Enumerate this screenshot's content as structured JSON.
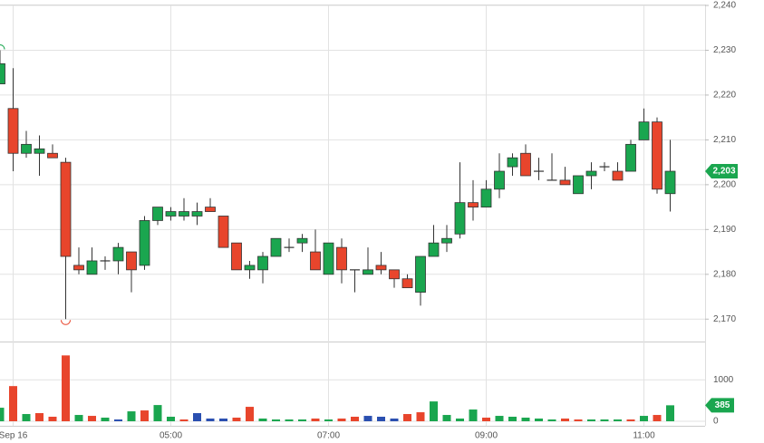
{
  "chart_data": {
    "type": "candlestick",
    "categories": [
      null,
      "Sep 16",
      null,
      null,
      null,
      null,
      null,
      null,
      null,
      null,
      null,
      null,
      null,
      "05:00",
      null,
      null,
      null,
      null,
      null,
      null,
      null,
      null,
      null,
      null,
      null,
      "07:00",
      null,
      null,
      null,
      null,
      null,
      null,
      null,
      null,
      null,
      null,
      null,
      "09:00",
      null,
      null,
      null,
      null,
      null,
      null,
      null,
      null,
      null,
      null,
      null,
      "11:00",
      null,
      null
    ],
    "open": [
      2222.5,
      2217,
      2207,
      2207,
      2207,
      2205,
      2182,
      2180,
      2183,
      2183,
      2185,
      2182,
      2192,
      2193,
      2193,
      2193,
      2195,
      2193,
      2187,
      2181,
      2181,
      2184,
      2186,
      2187,
      2185,
      2180,
      2186,
      2181,
      2180,
      2182,
      2181,
      2179,
      2176,
      2184,
      2187,
      2189,
      2196,
      2195,
      2199,
      2204,
      2207,
      2203,
      2201,
      2201,
      2198,
      2202,
      2204,
      2203,
      2203,
      2210,
      2214,
      2198
    ],
    "high": [
      2230,
      2226,
      2212,
      2211,
      2209,
      2206,
      2186,
      2186,
      2184,
      2187,
      2185,
      2193,
      2195,
      2195,
      2197,
      2196,
      2197,
      2193,
      2187,
      2183,
      2185,
      2188,
      2188,
      2189,
      2190,
      2187,
      2188,
      2181,
      2186,
      2185,
      2181,
      2180,
      2184,
      2191,
      2191,
      2205,
      2201,
      2201,
      2207,
      2207,
      2209,
      2206,
      2207,
      2204,
      2202,
      2205,
      2205,
      2205,
      2210,
      2217,
      2215,
      2210
    ],
    "low": [
      2222.5,
      2203,
      2206,
      2202,
      2206,
      2170,
      2180,
      2180,
      2181,
      2180,
      2176,
      2181,
      2191,
      2192,
      2192,
      2191,
      2194,
      2186,
      2181,
      2179,
      2178,
      2184,
      2185,
      2185,
      2181,
      2180,
      2178,
      2176,
      2180,
      2180,
      2177,
      2177,
      2173,
      2184,
      2185,
      2188,
      2192,
      2195,
      2197,
      2202,
      2202,
      2201,
      2201,
      2200,
      2198,
      2199,
      2203,
      2201,
      2203,
      2210,
      2198,
      2194
    ],
    "close": [
      2227,
      2207,
      2209,
      2208,
      2206,
      2184,
      2181,
      2183,
      2183,
      2186,
      2181,
      2192,
      2195,
      2194,
      2194,
      2194,
      2194,
      2186,
      2181,
      2182,
      2184,
      2188,
      2186,
      2188,
      2181,
      2187,
      2181,
      2181,
      2181,
      2181,
      2179,
      2177,
      2184,
      2187,
      2188,
      2196,
      2195,
      2199,
      2203,
      2206,
      2202,
      2203,
      2201,
      2200,
      2202,
      2203,
      2204,
      2201,
      2209,
      2214,
      2199,
      2203
    ],
    "up_color": "#1aa64f",
    "down_color": "#e8452c",
    "ylim": [
      2165,
      2240
    ],
    "yticks": [
      {
        "value": 2170,
        "label": "2,170"
      },
      {
        "value": 2180,
        "label": "2,180"
      },
      {
        "value": 2190,
        "label": "2,190"
      },
      {
        "value": 2200,
        "label": "2,200"
      },
      {
        "value": 2210,
        "label": "2,210"
      },
      {
        "value": 2220,
        "label": "2,220"
      },
      {
        "value": 2230,
        "label": "2,230"
      },
      {
        "value": 2240,
        "label": "2,240"
      }
    ],
    "last_price": {
      "value": 2203,
      "label": "2,203"
    },
    "grid": true,
    "volume": {
      "values": [
        326,
        848,
        174,
        196,
        109,
        1587,
        152,
        130,
        87,
        43,
        239,
        261,
        391,
        109,
        43,
        196,
        65,
        65,
        87,
        348,
        65,
        43,
        43,
        43,
        65,
        43,
        65,
        109,
        130,
        109,
        65,
        174,
        217,
        478,
        152,
        65,
        283,
        87,
        130,
        109,
        87,
        65,
        43,
        65,
        43,
        43,
        43,
        43,
        43,
        130,
        152,
        385
      ],
      "colors": [
        "#1aa64f",
        "#e8452c",
        "#1aa64f",
        "#e8452c",
        "#e8452c",
        "#e8452c",
        "#1aa64f",
        "#e8452c",
        "#1aa64f",
        "#2a4fb0",
        "#1aa64f",
        "#e8452c",
        "#1aa64f",
        "#1aa64f",
        "#e8452c",
        "#2a4fb0",
        "#2a4fb0",
        "#2a4fb0",
        "#e8452c",
        "#e8452c",
        "#1aa64f",
        "#1aa64f",
        "#1aa64f",
        "#1aa64f",
        "#e8452c",
        "#1aa64f",
        "#e8452c",
        "#e8452c",
        "#2a4fb0",
        "#2a4fb0",
        "#2a4fb0",
        "#e8452c",
        "#e8452c",
        "#1aa64f",
        "#1aa64f",
        "#1aa64f",
        "#1aa64f",
        "#e8452c",
        "#1aa64f",
        "#1aa64f",
        "#1aa64f",
        "#1aa64f",
        "#1aa64f",
        "#e8452c",
        "#e8452c",
        "#1aa64f",
        "#1aa64f",
        "#1aa64f",
        "#e8452c",
        "#1aa64f",
        "#e8452c",
        "#1aa64f"
      ],
      "ylim": [
        0,
        1900
      ],
      "yticks": [
        0,
        1000
      ]
    }
  }
}
